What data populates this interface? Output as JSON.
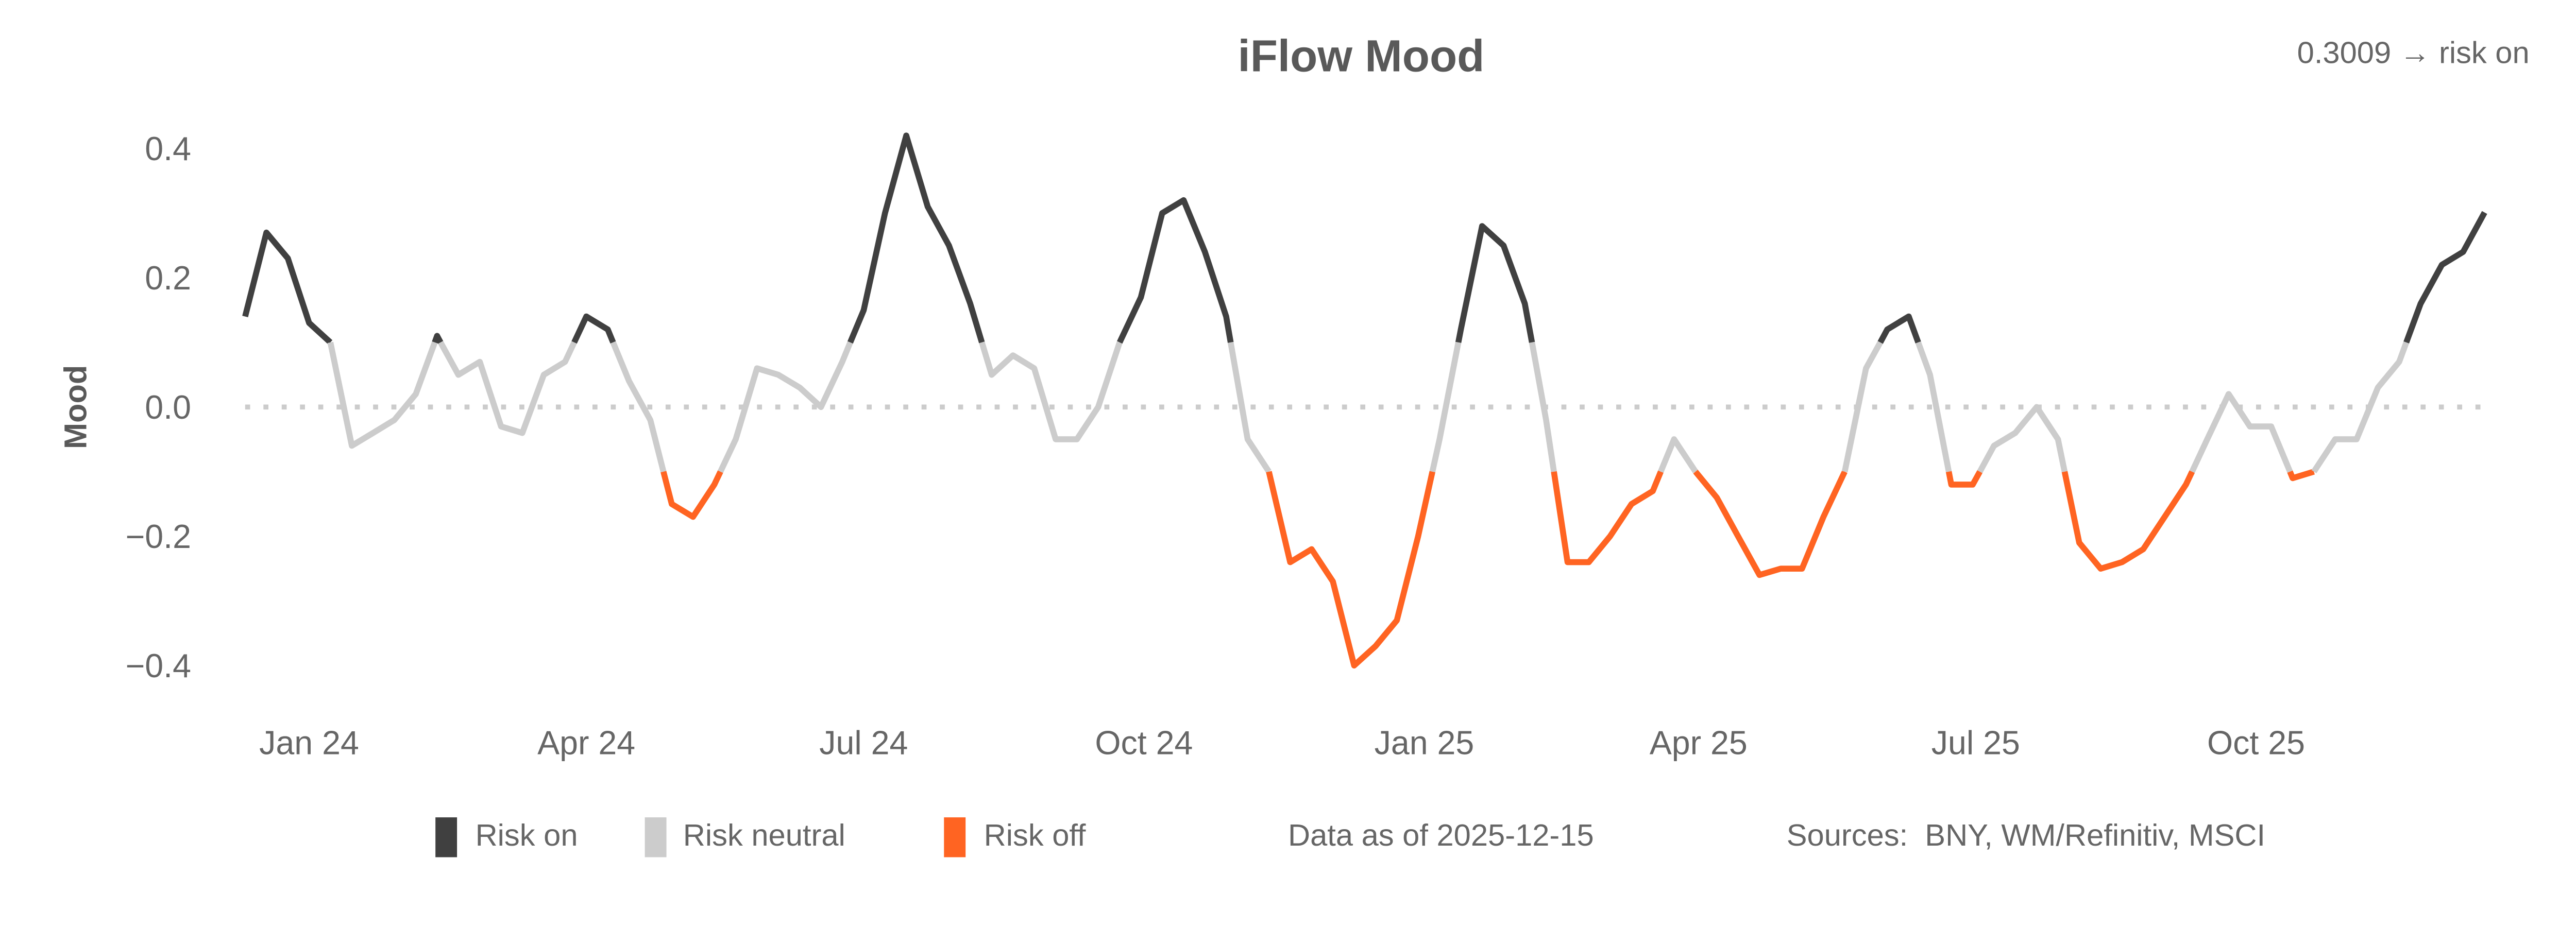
{
  "chart_data": {
    "type": "line",
    "title": "iFlow Mood",
    "annotation": "0.3009 → risk on",
    "ylabel": "Mood",
    "xlabel": "",
    "ylim": [
      -0.45,
      0.45
    ],
    "y_ticks": [
      "0.4",
      "0.2",
      "0.0",
      "−0.2",
      "−0.4"
    ],
    "y_tick_values": [
      0.4,
      0.2,
      0.0,
      -0.2,
      -0.4
    ],
    "x_ticks": [
      "Jan 24",
      "Apr 24",
      "Jul 24",
      "Oct 24",
      "Jan 25",
      "Apr 25",
      "Jul 25",
      "Oct 25"
    ],
    "x_tick_dates": [
      "2024-01-01",
      "2024-04-01",
      "2024-07-01",
      "2024-10-01",
      "2025-01-01",
      "2025-04-01",
      "2025-07-01",
      "2025-10-01"
    ],
    "xlim": [
      "2023-12-11",
      "2025-12-15"
    ],
    "zero_line": "dotted",
    "grid": false,
    "legend_position": "bottom",
    "legend": [
      {
        "label": "Risk on",
        "color": "#404040"
      },
      {
        "label": "Risk neutral",
        "color": "#cccccc"
      },
      {
        "label": "Risk off",
        "color": "#ff6422"
      }
    ],
    "data_as_of": "Data as of 2025-12-15",
    "sources": "Sources:  BNY, WM/Refinitiv, MSCI",
    "x": [
      "2023-12-11",
      "2023-12-18",
      "2023-12-25",
      "2024-01-01",
      "2024-01-08",
      "2024-01-15",
      "2024-01-22",
      "2024-01-29",
      "2024-02-05",
      "2024-02-12",
      "2024-02-19",
      "2024-02-26",
      "2024-03-04",
      "2024-03-11",
      "2024-03-18",
      "2024-03-25",
      "2024-04-01",
      "2024-04-08",
      "2024-04-15",
      "2024-04-22",
      "2024-04-29",
      "2024-05-06",
      "2024-05-13",
      "2024-05-20",
      "2024-05-27",
      "2024-06-03",
      "2024-06-10",
      "2024-06-17",
      "2024-06-24",
      "2024-07-01",
      "2024-07-08",
      "2024-07-15",
      "2024-07-22",
      "2024-07-29",
      "2024-08-05",
      "2024-08-12",
      "2024-08-19",
      "2024-08-26",
      "2024-09-02",
      "2024-09-09",
      "2024-09-16",
      "2024-09-23",
      "2024-09-30",
      "2024-10-07",
      "2024-10-14",
      "2024-10-21",
      "2024-10-28",
      "2024-11-04",
      "2024-11-11",
      "2024-11-18",
      "2024-11-25",
      "2024-12-02",
      "2024-12-09",
      "2024-12-16",
      "2024-12-23",
      "2024-12-30",
      "2025-01-06",
      "2025-01-13",
      "2025-01-20",
      "2025-01-27",
      "2025-02-03",
      "2025-02-10",
      "2025-02-17",
      "2025-02-24",
      "2025-03-03",
      "2025-03-10",
      "2025-03-17",
      "2025-03-24",
      "2025-03-31",
      "2025-04-07",
      "2025-04-14",
      "2025-04-21",
      "2025-04-28",
      "2025-05-05",
      "2025-05-12",
      "2025-05-19",
      "2025-05-26",
      "2025-06-02",
      "2025-06-09",
      "2025-06-16",
      "2025-06-23",
      "2025-06-30",
      "2025-07-07",
      "2025-07-14",
      "2025-07-21",
      "2025-07-28",
      "2025-08-04",
      "2025-08-11",
      "2025-08-18",
      "2025-08-25",
      "2025-09-01",
      "2025-09-08",
      "2025-09-15",
      "2025-09-22",
      "2025-09-29",
      "2025-10-06",
      "2025-10-13",
      "2025-10-20",
      "2025-10-27",
      "2025-11-03",
      "2025-11-10",
      "2025-11-17",
      "2025-11-24",
      "2025-12-01",
      "2025-12-08",
      "2025-12-15"
    ],
    "series": [
      {
        "values": [
          0.14,
          0.27,
          0.23,
          0.13,
          0.1,
          -0.06,
          -0.04,
          -0.02,
          0.02,
          0.11,
          0.05,
          0.07,
          -0.03,
          -0.04,
          0.05,
          0.07,
          0.14,
          0.12,
          0.04,
          -0.02,
          -0.15,
          -0.17,
          -0.12,
          -0.05,
          0.06,
          0.05,
          0.03,
          0.0,
          0.07,
          0.15,
          0.3,
          0.42,
          0.31,
          0.25,
          0.16,
          0.05,
          0.08,
          0.06,
          -0.05,
          -0.05,
          0.0,
          0.1,
          0.17,
          0.3,
          0.32,
          0.24,
          0.14,
          -0.05,
          -0.1,
          -0.24,
          -0.22,
          -0.27,
          -0.4,
          -0.37,
          -0.33,
          -0.2,
          -0.05,
          0.12,
          0.28,
          0.25,
          0.16,
          -0.02,
          -0.24,
          -0.24,
          -0.2,
          -0.15,
          -0.13,
          -0.05,
          -0.1,
          -0.14,
          -0.2,
          -0.26,
          -0.25,
          -0.25,
          -0.17,
          -0.1,
          0.06,
          0.12,
          0.14,
          0.05,
          -0.12,
          -0.12,
          -0.06,
          -0.04,
          0.0,
          -0.05,
          -0.21,
          -0.25,
          -0.24,
          -0.22,
          -0.17,
          -0.12,
          -0.05,
          0.02,
          -0.03,
          -0.03,
          -0.11,
          -0.1,
          -0.05,
          -0.05,
          0.03,
          0.07,
          0.16,
          0.22,
          0.24,
          0.3009
        ]
      }
    ]
  }
}
